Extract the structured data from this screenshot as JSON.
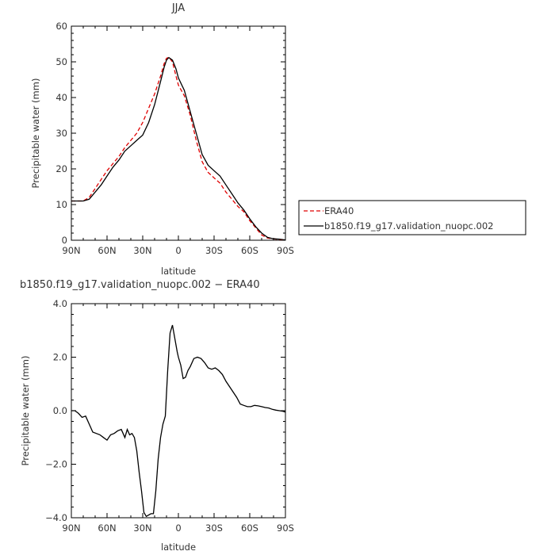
{
  "chart_data": [
    {
      "type": "line",
      "title": "JJA",
      "xlabel": "latitude",
      "ylabel": "Precipitable water (mm)",
      "xlim": [
        90,
        -90
      ],
      "ylim": [
        0,
        60
      ],
      "x_ticks": [
        "90N",
        "60N",
        "30N",
        "0",
        "30S",
        "60S",
        "90S"
      ],
      "y_ticks": [
        "0",
        "10",
        "20",
        "30",
        "40",
        "50",
        "60"
      ],
      "legend": "right",
      "series": [
        {
          "name": "ERA40",
          "color": "#e00000",
          "dash": "dashed",
          "x": [
            90,
            85,
            80,
            75,
            70,
            65,
            60,
            55,
            50,
            45,
            40,
            35,
            30,
            25,
            20,
            15,
            12,
            10,
            8,
            5,
            2,
            0,
            -5,
            -10,
            -15,
            -20,
            -25,
            -30,
            -35,
            -40,
            -45,
            -50,
            -55,
            -60,
            -65,
            -70,
            -75,
            -80,
            -85,
            -90
          ],
          "y": [
            11,
            11,
            11,
            12,
            14.5,
            17,
            19.5,
            21.5,
            23.5,
            26,
            28,
            30,
            33,
            37,
            41,
            46,
            49.5,
            51,
            51.3,
            50,
            46,
            43.5,
            40.5,
            35,
            28,
            22,
            19,
            17.5,
            16,
            13.5,
            11.5,
            9.5,
            8,
            5.5,
            3.5,
            1.5,
            0.6,
            0.4,
            0.2,
            0.1
          ]
        },
        {
          "name": "b1850.f19_g17.validation_nuopc.002",
          "color": "#000000",
          "dash": "solid",
          "x": [
            90,
            85,
            80,
            75,
            70,
            65,
            60,
            55,
            50,
            45,
            40,
            35,
            30,
            25,
            20,
            15,
            12,
            10,
            8,
            5,
            2,
            0,
            -5,
            -10,
            -15,
            -20,
            -25,
            -30,
            -35,
            -40,
            -45,
            -50,
            -55,
            -60,
            -65,
            -70,
            -75,
            -80,
            -85,
            -90
          ],
          "y": [
            11,
            11,
            11,
            11.5,
            13.5,
            15.5,
            18,
            20.5,
            22.5,
            25,
            26.5,
            28,
            29.5,
            33,
            38,
            44.5,
            48.5,
            50.5,
            51.2,
            50.5,
            48,
            45.5,
            42,
            36,
            30,
            24,
            21,
            19.5,
            18,
            15.5,
            13,
            10.5,
            8.5,
            6,
            3.8,
            2,
            0.8,
            0.4,
            0.3,
            0.1
          ]
        }
      ]
    },
    {
      "type": "line",
      "title": "b1850.f19_g17.validation_nuopc.002 − ERA40",
      "xlabel": "latitude",
      "ylabel": "Precipitable water (mm)",
      "xlim": [
        90,
        -90
      ],
      "ylim": [
        -4,
        4
      ],
      "x_ticks": [
        "90N",
        "60N",
        "30N",
        "0",
        "30S",
        "60S",
        "90S"
      ],
      "y_ticks": [
        "4.0",
        "2.0",
        "0.0",
        "−2.0",
        "−4.0"
      ],
      "series": [
        {
          "color": "#000000",
          "x": [
            90,
            87,
            84,
            81,
            78,
            75,
            72,
            69,
            66,
            63,
            60,
            57,
            54,
            51,
            48,
            45,
            43,
            41,
            39,
            37,
            35,
            33,
            31,
            29,
            27,
            25,
            23,
            21,
            19,
            17,
            15,
            13,
            11,
            9,
            7,
            5,
            3,
            1,
            0,
            -2,
            -4,
            -6,
            -8,
            -10,
            -13,
            -16,
            -19,
            -22,
            -25,
            -28,
            -31,
            -34,
            -37,
            -40,
            -43,
            -46,
            -49,
            -52,
            -55,
            -58,
            -61,
            -64,
            -67,
            -70,
            -73,
            -76,
            -79,
            -82,
            -85,
            -88,
            -90
          ],
          "y": [
            0,
            0,
            -0.1,
            -0.25,
            -0.2,
            -0.5,
            -0.8,
            -0.85,
            -0.9,
            -1.0,
            -1.1,
            -0.9,
            -0.85,
            -0.75,
            -0.7,
            -1.0,
            -0.7,
            -0.9,
            -0.85,
            -1.0,
            -1.5,
            -2.3,
            -3.0,
            -3.8,
            -3.95,
            -3.9,
            -3.85,
            -3.85,
            -3.0,
            -1.8,
            -1.0,
            -0.5,
            -0.2,
            1.5,
            2.9,
            3.2,
            2.7,
            2.2,
            2.0,
            1.7,
            1.2,
            1.25,
            1.5,
            1.65,
            1.95,
            2.0,
            1.95,
            1.8,
            1.6,
            1.55,
            1.6,
            1.5,
            1.35,
            1.1,
            0.9,
            0.7,
            0.5,
            0.25,
            0.2,
            0.15,
            0.15,
            0.2,
            0.18,
            0.15,
            0.12,
            0.1,
            0.05,
            0.02,
            0.0,
            -0.02,
            -0.05
          ]
        }
      ]
    }
  ]
}
